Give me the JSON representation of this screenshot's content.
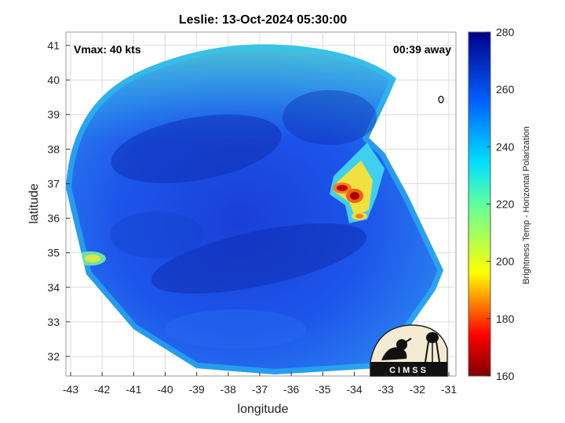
{
  "title": "Leslie: 13-Oct-2024 05:30:00",
  "vmax_text": "Vmax: 40 kts",
  "away_text": "00:39 away",
  "xlabel": "longitude",
  "ylabel": "latitude",
  "x_ticks": [
    "-43",
    "-42",
    "-41",
    "-40",
    "-39",
    "-38",
    "-37",
    "-36",
    "-35",
    "-34",
    "-33",
    "-32",
    "-31"
  ],
  "y_ticks": [
    "41",
    "40",
    "39",
    "38",
    "37",
    "36",
    "35",
    "34",
    "33",
    "32"
  ],
  "colorbar": {
    "label": "Brightness Temp - Horizontal Polarization",
    "ticks": [
      "280",
      "260",
      "240",
      "220",
      "200",
      "180",
      "160"
    ],
    "min": 160,
    "max": 280
  },
  "logo_text": "CIMSS",
  "colors": {
    "field_blue": "#1a4fe0",
    "deep_blue": "#0a2aa8",
    "cyan": "#3fd8e8",
    "warm_red": "#cc0000"
  }
}
